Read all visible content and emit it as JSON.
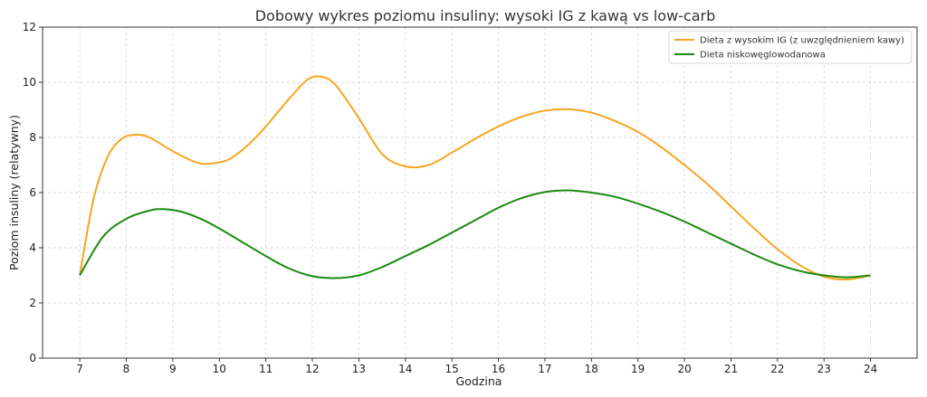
{
  "chart_data": {
    "type": "line",
    "title": "Dobowy wykres poziomu insuliny: wysoki IG z kawą vs low-carb",
    "xlabel": "Godzina",
    "ylabel": "Poziom insuliny (relatywny)",
    "xlim": [
      6.2,
      25.0
    ],
    "ylim": [
      0,
      12
    ],
    "xticks": [
      7,
      8,
      9,
      10,
      11,
      12,
      13,
      14,
      15,
      16,
      17,
      18,
      19,
      20,
      21,
      22,
      23,
      24
    ],
    "yticks": [
      0,
      2,
      4,
      6,
      8,
      10,
      12
    ],
    "grid": true,
    "legend_position": "top-right",
    "series": [
      {
        "name": "Dieta z wysokim IG (z uwzględnieniem kawy)",
        "color": "#f5a623",
        "x": [
          7,
          7.3,
          7.6,
          7.9,
          8.2,
          8.5,
          9.0,
          9.5,
          9.8,
          10.2,
          10.6,
          11.0,
          11.5,
          11.9,
          12.2,
          12.5,
          13.0,
          13.5,
          14.0,
          14.5,
          15.0,
          15.5,
          16.0,
          16.5,
          17.0,
          17.5,
          18.0,
          18.5,
          19.0,
          19.5,
          20.0,
          20.5,
          21.0,
          21.5,
          22.0,
          22.5,
          23.0,
          23.5,
          24.0
        ],
        "y": [
          3.0,
          5.8,
          7.3,
          7.95,
          8.1,
          8.0,
          7.5,
          7.1,
          7.05,
          7.2,
          7.7,
          8.4,
          9.4,
          10.1,
          10.2,
          9.9,
          8.7,
          7.4,
          6.95,
          7.0,
          7.45,
          7.95,
          8.4,
          8.75,
          8.97,
          9.02,
          8.9,
          8.6,
          8.2,
          7.65,
          7.0,
          6.3,
          5.5,
          4.7,
          3.95,
          3.35,
          2.95,
          2.85,
          3.0
        ]
      },
      {
        "name": "Dieta niskowęglowodanowa",
        "color": "#1a8a0e",
        "x": [
          7,
          7.5,
          8.0,
          8.5,
          8.8,
          9.2,
          9.6,
          10.0,
          10.5,
          11.0,
          11.5,
          12.0,
          12.5,
          13.0,
          13.5,
          14.0,
          14.5,
          15.0,
          15.5,
          16.0,
          16.5,
          17.0,
          17.5,
          18.0,
          18.5,
          19.0,
          19.5,
          20.0,
          20.5,
          21.0,
          21.5,
          22.0,
          22.5,
          23.0,
          23.5,
          24.0
        ],
        "y": [
          3.0,
          4.4,
          5.05,
          5.35,
          5.4,
          5.3,
          5.05,
          4.7,
          4.2,
          3.7,
          3.25,
          2.97,
          2.9,
          3.0,
          3.3,
          3.7,
          4.1,
          4.55,
          5.0,
          5.45,
          5.8,
          6.02,
          6.08,
          6.0,
          5.85,
          5.6,
          5.3,
          4.95,
          4.55,
          4.15,
          3.75,
          3.4,
          3.15,
          3.0,
          2.93,
          3.0
        ]
      }
    ]
  }
}
